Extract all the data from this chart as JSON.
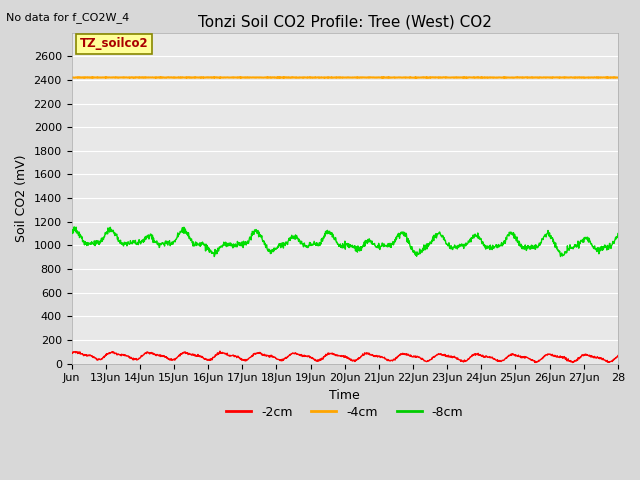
{
  "title": "Tonzi Soil CO2 Profile: Tree (West) CO2",
  "top_left_text": "No data for f_CO2W_4",
  "ylabel": "Soil CO2 (mV)",
  "xlabel": "Time",
  "ylim": [
    0,
    2800
  ],
  "yticks": [
    0,
    200,
    400,
    600,
    800,
    1000,
    1200,
    1400,
    1600,
    1800,
    2000,
    2200,
    2400,
    2600
  ],
  "xtick_labels": [
    "Jun",
    "13Jun",
    "14Jun",
    "15Jun",
    "16Jun",
    "17Jun",
    "18Jun",
    "19Jun",
    "20Jun",
    "21Jun",
    "22Jun",
    "23Jun",
    "24Jun",
    "25Jun",
    "26Jun",
    "27Jun",
    "28"
  ],
  "legend_labels": [
    "-2cm",
    "-4cm",
    "-8cm"
  ],
  "legend_colors": [
    "#ff0000",
    "#ffa500",
    "#00cc00"
  ],
  "color_2cm": "#ff0000",
  "color_4cm": "#ffa500",
  "color_8cm": "#00dd00",
  "line_width": 1.0,
  "plot_bg_color": "#e8e8e8",
  "fig_bg_color": "#d8d8d8",
  "annotation_box_text": "TZ_soilco2",
  "annotation_box_facecolor": "#ffff99",
  "annotation_box_edgecolor": "#888800",
  "annotation_box_textcolor": "#aa0000",
  "grid_color": "#ffffff",
  "tick_fontsize": 8,
  "title_fontsize": 11,
  "ylabel_fontsize": 9,
  "xlabel_fontsize": 9
}
